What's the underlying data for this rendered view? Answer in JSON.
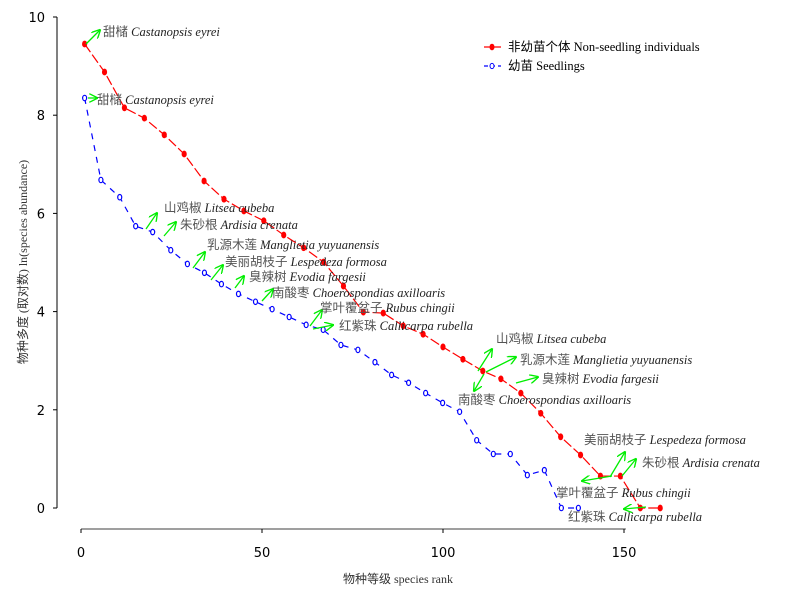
{
  "chart_data": {
    "type": "line",
    "xlabel": "物种等级 species rank",
    "ylabel": "物种多度 (取对数) ln(species abundance)",
    "xlim": [
      0,
      160
    ],
    "ylim": [
      0,
      10
    ],
    "xticks": [
      "0",
      "50",
      "100",
      "150"
    ],
    "yticks": [
      "0",
      "2",
      "4",
      "6",
      "8",
      "10"
    ],
    "grid": false,
    "legend_position": "top-right",
    "series": [
      {
        "name": "非幼苗个体 Non-seedling individuals",
        "color": "#ff0000",
        "marker": "filled-dot",
        "x": [
          1,
          6.5,
          12,
          17.5,
          23,
          28.5,
          34,
          39.5,
          45,
          50.5,
          56,
          61.5,
          67,
          72.5,
          78,
          83.5,
          89,
          94.5,
          100,
          105.5,
          111,
          116,
          121.5,
          127,
          132.5,
          138,
          143.5,
          149,
          154.5,
          160
        ],
        "y": [
          9.45,
          8.88,
          8.15,
          7.94,
          7.6,
          7.21,
          6.66,
          6.29,
          6.05,
          5.85,
          5.56,
          5.3,
          5.01,
          4.52,
          3.99,
          3.97,
          3.71,
          3.54,
          3.28,
          3.03,
          2.79,
          2.63,
          2.34,
          1.93,
          1.45,
          1.08,
          0.65,
          0.65,
          0,
          0
        ]
      },
      {
        "name": "幼苗  Seedlings",
        "color": "#0000ff",
        "marker": "o",
        "x": [
          1,
          5.5,
          10.7,
          15.1,
          19.8,
          24.8,
          29.4,
          34.1,
          38.8,
          43.5,
          48.2,
          52.8,
          57.5,
          62.2,
          66.9,
          71.8,
          76.5,
          81.2,
          85.8,
          90.5,
          95.2,
          99.9,
          104.6,
          109.3,
          113.9,
          118.6,
          123.3,
          128,
          132.7,
          137.4
        ],
        "y": [
          8.35,
          6.68,
          6.33,
          5.74,
          5.62,
          5.25,
          4.97,
          4.79,
          4.56,
          4.36,
          4.2,
          4.05,
          3.89,
          3.73,
          3.63,
          3.32,
          3.22,
          2.97,
          2.71,
          2.55,
          2.34,
          2.14,
          1.96,
          1.38,
          1.1,
          1.1,
          0.67,
          0.77,
          0,
          0
        ]
      }
    ],
    "annotations": [
      "甜槠 Castanopsis eyrei",
      "甜槠 Castanopsis eyrei",
      "山鸡椒 Litsea  cubeba",
      "朱砂根 Ardisia  crenata",
      "乳源木莲 Manglietia yuyuanensis",
      "美丽胡枝子 Lespedeza formosa",
      "臭辣树 Evodia  fargesii",
      "南酸枣 Choerospondias axilloaris",
      "掌叶覆盆子 Rubus chingii",
      "红紫珠 Callicarpa  rubella",
      "山鸡椒 Litsea  cubeba",
      "乳源木莲 Manglietia  yuyuanensis",
      "臭辣树 Evodia  fargesii",
      "南酸枣 Choerospondias axilloaris",
      "美丽胡枝子  Lespedeza formosa",
      "朱砂根  Ardisia crenata",
      "掌叶覆盆子 Rubus chingii",
      "红紫珠 Callicarpa  rubella"
    ],
    "annotation_color": "#00ee00"
  }
}
